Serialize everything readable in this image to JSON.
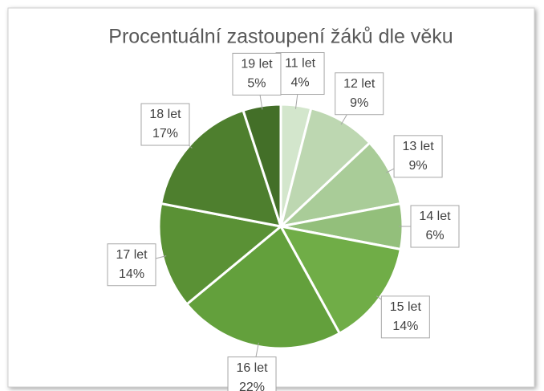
{
  "chart_data": {
    "type": "pie",
    "title": "Procentuální zastoupení žáků dle věku",
    "categories": [
      "11 let",
      "12 let",
      "13 let",
      "14 let",
      "15 let",
      "16 let",
      "17 let",
      "18 let",
      "19 let"
    ],
    "values": [
      4,
      9,
      9,
      6,
      14,
      22,
      14,
      17,
      5
    ],
    "value_labels": [
      "4%",
      "9%",
      "9%",
      "6%",
      "14%",
      "22%",
      "14%",
      "17%",
      "5%"
    ],
    "colors": [
      "#d3e6cc",
      "#bdd7b1",
      "#a9cc98",
      "#93bf7b",
      "#70ad47",
      "#63a03c",
      "#5a9135",
      "#4e7f2e",
      "#436f28"
    ]
  }
}
